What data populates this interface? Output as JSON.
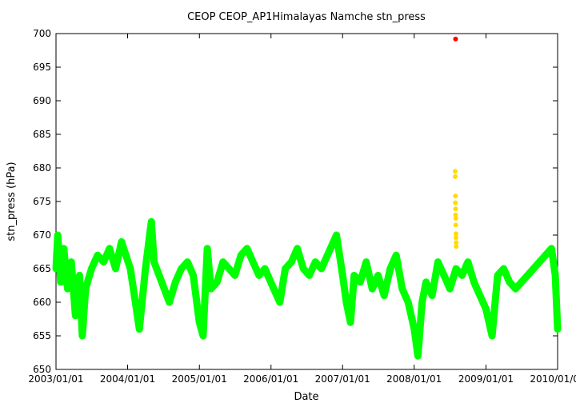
{
  "chart_data": {
    "type": "scatter",
    "title": "CEOP CEOP_AP1Himalayas Namche  stn_press",
    "xlabel": "Date",
    "ylabel": "stn_press (hPa)",
    "xlim": [
      "2003/01/01",
      "2010/01/01"
    ],
    "ylim": [
      650,
      700
    ],
    "x_ticks": [
      "2003/01/01",
      "2004/01/01",
      "2005/01/01",
      "2006/01/01",
      "2007/01/01",
      "2008/01/01",
      "2009/01/01",
      "2010/01/01"
    ],
    "y_ticks": [
      650,
      655,
      660,
      665,
      670,
      675,
      680,
      685,
      690,
      695,
      700
    ],
    "grid": false,
    "legend": "none",
    "series": [
      {
        "color": "#00ff00",
        "marker": "dot",
        "points": [
          [
            "2003/01/01",
            665
          ],
          [
            "2003/01/10",
            670
          ],
          [
            "2003/01/25",
            663
          ],
          [
            "2003/02/10",
            668
          ],
          [
            "2003/03/01",
            662
          ],
          [
            "2003/03/20",
            666
          ],
          [
            "2003/04/10",
            658
          ],
          [
            "2003/05/01",
            664
          ],
          [
            "2003/05/15",
            655
          ],
          [
            "2003/06/01",
            662
          ],
          [
            "2003/07/01",
            665
          ],
          [
            "2003/08/01",
            667
          ],
          [
            "2003/09/01",
            666
          ],
          [
            "2003/10/01",
            668
          ],
          [
            "2003/11/01",
            665
          ],
          [
            "2003/12/01",
            669
          ],
          [
            "2004/01/15",
            665
          ],
          [
            "2004/02/15",
            659
          ],
          [
            "2004/03/01",
            656
          ],
          [
            "2004/04/01",
            665
          ],
          [
            "2004/05/01",
            672
          ],
          [
            "2004/05/15",
            666
          ],
          [
            "2004/08/01",
            660
          ],
          [
            "2004/09/01",
            663
          ],
          [
            "2004/10/01",
            665
          ],
          [
            "2004/11/01",
            666
          ],
          [
            "2004/12/01",
            664
          ],
          [
            "2005/01/01",
            657
          ],
          [
            "2005/01/20",
            655
          ],
          [
            "2005/02/10",
            668
          ],
          [
            "2005/03/01",
            662
          ],
          [
            "2005/04/01",
            663
          ],
          [
            "2005/05/01",
            666
          ],
          [
            "2005/06/01",
            665
          ],
          [
            "2005/07/01",
            664
          ],
          [
            "2005/08/01",
            667
          ],
          [
            "2005/09/01",
            668
          ],
          [
            "2005/10/01",
            666
          ],
          [
            "2005/11/01",
            664
          ],
          [
            "2005/12/01",
            665
          ],
          [
            "2006/01/15",
            662
          ],
          [
            "2006/02/15",
            660
          ],
          [
            "2006/03/15",
            665
          ],
          [
            "2006/04/15",
            666
          ],
          [
            "2006/05/15",
            668
          ],
          [
            "2006/06/15",
            665
          ],
          [
            "2006/07/15",
            664
          ],
          [
            "2006/08/15",
            666
          ],
          [
            "2006/09/15",
            665
          ],
          [
            "2006/12/01",
            670
          ],
          [
            "2007/01/01",
            664
          ],
          [
            "2007/01/20",
            660
          ],
          [
            "2007/02/10",
            657
          ],
          [
            "2007/03/01",
            664
          ],
          [
            "2007/04/01",
            663
          ],
          [
            "2007/05/01",
            666
          ],
          [
            "2007/06/01",
            662
          ],
          [
            "2007/07/01",
            664
          ],
          [
            "2007/08/01",
            661
          ],
          [
            "2007/09/01",
            665
          ],
          [
            "2007/10/01",
            667
          ],
          [
            "2007/11/01",
            662
          ],
          [
            "2007/12/01",
            660
          ],
          [
            "2008/01/01",
            656
          ],
          [
            "2008/01/20",
            652
          ],
          [
            "2008/02/10",
            660
          ],
          [
            "2008/03/01",
            663
          ],
          [
            "2008/04/01",
            661
          ],
          [
            "2008/05/01",
            666
          ],
          [
            "2008/06/01",
            664
          ],
          [
            "2008/07/01",
            662
          ],
          [
            "2008/08/01",
            665
          ],
          [
            "2008/09/01",
            664
          ],
          [
            "2008/10/01",
            666
          ],
          [
            "2008/11/01",
            663
          ],
          [
            "2008/12/01",
            661
          ],
          [
            "2009/01/01",
            659
          ],
          [
            "2009/02/01",
            655
          ],
          [
            "2009/03/01",
            664
          ],
          [
            "2009/04/01",
            665
          ],
          [
            "2009/05/01",
            663
          ],
          [
            "2009/06/01",
            662
          ],
          [
            "2009/07/01",
            663
          ],
          [
            "2009/12/01",
            668
          ],
          [
            "2009/12/20",
            664
          ],
          [
            "2010/01/01",
            656
          ]
        ]
      },
      {
        "color": "#ffdd00",
        "marker": "dot",
        "points": [
          [
            "2008/07/28",
            679.5
          ],
          [
            "2008/07/28",
            678.7
          ],
          [
            "2008/07/29",
            675.8
          ],
          [
            "2008/07/29",
            674.8
          ],
          [
            "2008/07/30",
            673.9
          ],
          [
            "2008/07/30",
            673.0
          ],
          [
            "2008/07/31",
            672.5
          ],
          [
            "2008/07/31",
            671.5
          ],
          [
            "2008/08/01",
            670.2
          ],
          [
            "2008/08/01",
            669.6
          ],
          [
            "2008/08/02",
            668.9
          ],
          [
            "2008/08/02",
            668.3
          ]
        ]
      },
      {
        "color": "#ff0000",
        "marker": "dot",
        "points": [
          [
            "2008/07/30",
            699.2
          ]
        ]
      }
    ]
  }
}
